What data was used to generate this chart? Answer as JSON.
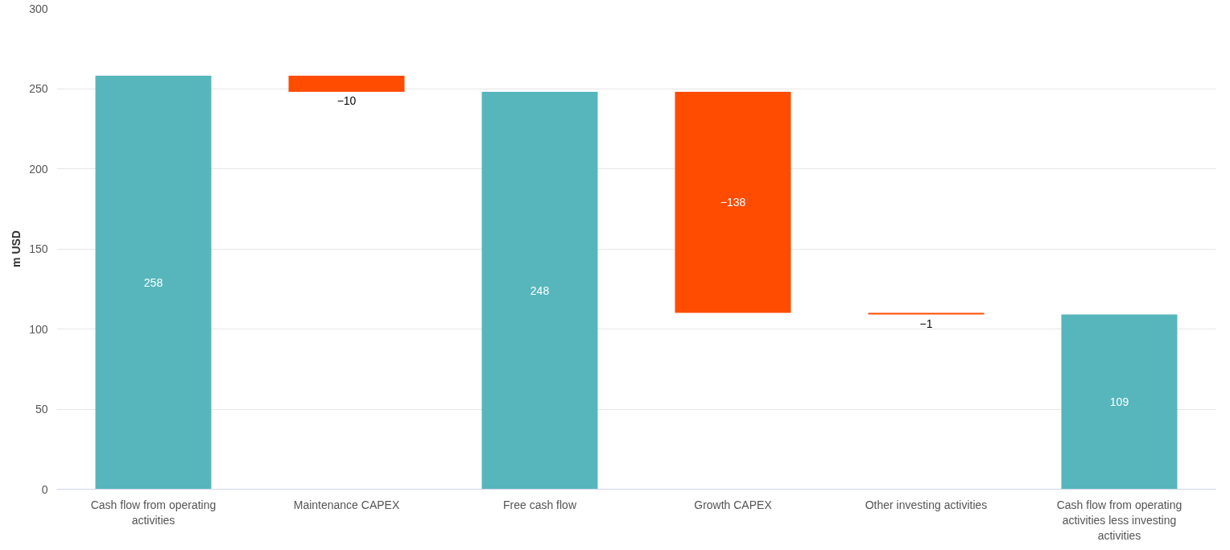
{
  "chart_data": {
    "type": "bar",
    "ylabel": "m USD",
    "categories": [
      "Cash flow from operating activities",
      "Maintenance CAPEX",
      "Free cash flow",
      "Growth CAPEX",
      "Other investing activities",
      "Cash flow from operating activities less investing activities"
    ],
    "values": [
      258,
      -10,
      248,
      -138,
      -1,
      109
    ],
    "base": [
      0,
      258,
      0,
      248,
      110,
      0
    ],
    "colors": [
      "#56b6bc",
      "#ff4c00",
      "#56b6bc",
      "#ff4c00",
      "#ff4c00",
      "#56b6bc"
    ],
    "value_labels": [
      "258",
      "−10",
      "248",
      "−138",
      "−1",
      "109"
    ],
    "ylim": [
      0,
      300
    ],
    "yticks": [
      0,
      50,
      100,
      150,
      200,
      250,
      300
    ],
    "grid": "y"
  }
}
